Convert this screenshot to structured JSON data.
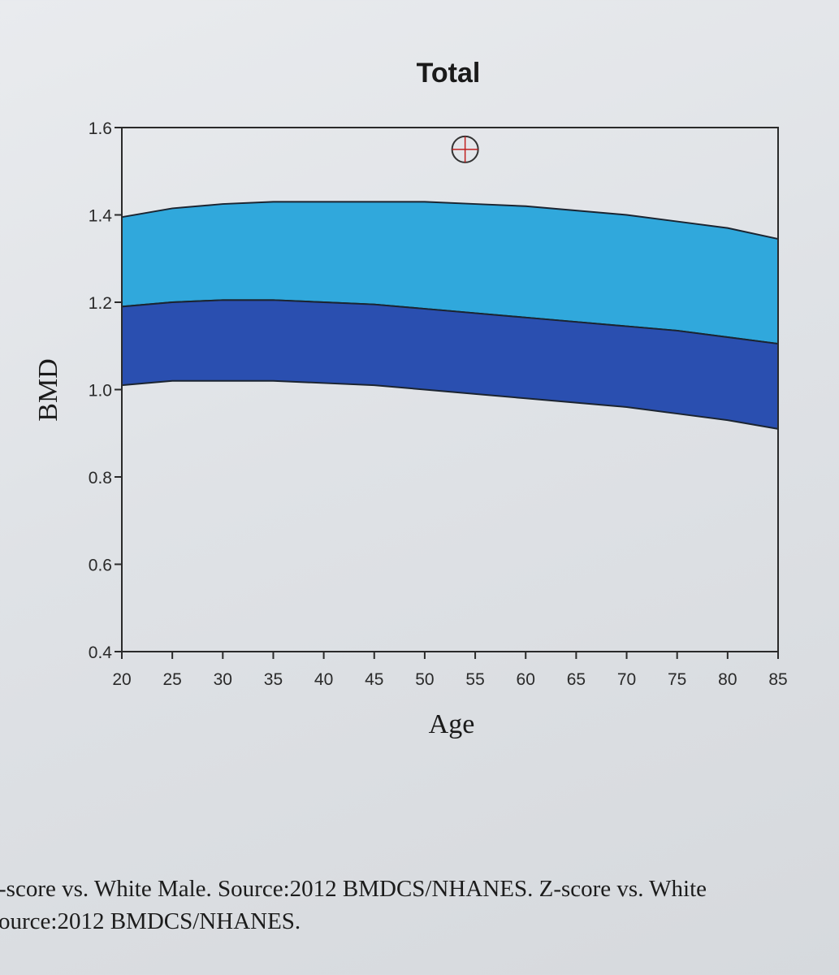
{
  "chart_data": {
    "type": "area",
    "title": "Total",
    "xlabel": "Age",
    "ylabel": "BMD",
    "xlim": [
      20,
      85
    ],
    "ylim": [
      0.4,
      1.6
    ],
    "x_ticks": [
      "20",
      "25",
      "30",
      "35",
      "40",
      "45",
      "50",
      "55",
      "60",
      "65",
      "70",
      "75",
      "80",
      "85"
    ],
    "y_ticks": [
      "1.6",
      "1.4",
      "1.2",
      "1.0",
      "0.8",
      "0.6",
      "0.4"
    ],
    "grid": false,
    "age": [
      20,
      25,
      30,
      35,
      40,
      45,
      50,
      55,
      60,
      65,
      70,
      75,
      80,
      85
    ],
    "bands": [
      {
        "color": "#30a8dc",
        "lower": [
          1.19,
          1.2,
          1.205,
          1.205,
          1.2,
          1.195,
          1.185,
          1.175,
          1.165,
          1.155,
          1.145,
          1.135,
          1.12,
          1.105
        ],
        "upper": [
          1.395,
          1.415,
          1.425,
          1.43,
          1.43,
          1.43,
          1.43,
          1.425,
          1.42,
          1.41,
          1.4,
          1.385,
          1.37,
          1.345
        ]
      },
      {
        "color": "#2a4fb0",
        "lower": [
          1.01,
          1.02,
          1.02,
          1.02,
          1.015,
          1.01,
          1.0,
          0.99,
          0.98,
          0.97,
          0.96,
          0.945,
          0.93,
          0.91
        ],
        "upper": [
          1.19,
          1.2,
          1.205,
          1.205,
          1.2,
          1.195,
          1.185,
          1.175,
          1.165,
          1.155,
          1.145,
          1.135,
          1.12,
          1.105
        ]
      }
    ],
    "patient_point": {
      "age": 54,
      "bmd": 1.55
    }
  },
  "caption": {
    "line1": "-score vs. White Male. Source:2012 BMDCS/NHANES. Z-score vs. White",
    "line2": "ource:2012 BMDCS/NHANES."
  }
}
